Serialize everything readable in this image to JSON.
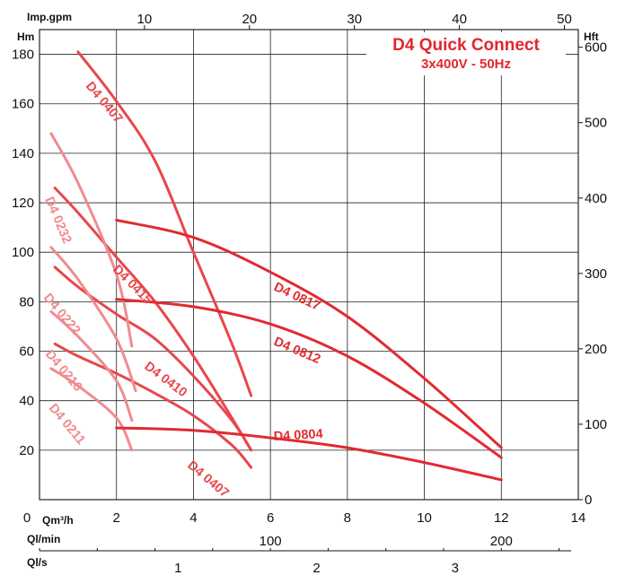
{
  "chart_data": {
    "type": "line",
    "title": "D4 Quick Connect",
    "subtitle": "3x400V - 50Hz",
    "x_axis": {
      "label": "Qm³/h",
      "range": [
        0,
        14
      ],
      "ticks": [
        "0",
        "2",
        "4",
        "6",
        "8",
        "10",
        "12",
        "14"
      ]
    },
    "y_axis": {
      "label": "Hm",
      "range": [
        0,
        190
      ],
      "ticks": [
        "20",
        "40",
        "60",
        "80",
        "100",
        "120",
        "140",
        "160",
        "180"
      ]
    },
    "y_axis_right": {
      "label": "Hft",
      "ticks": [
        "0",
        "100",
        "200",
        "300",
        "400",
        "500",
        "600"
      ]
    },
    "x_axis_top": {
      "label": "Imp.gpm",
      "ticks": [
        "10",
        "20",
        "30",
        "40",
        "50"
      ]
    },
    "x_axis_lmin": {
      "label": "Ql/min",
      "ticks": [
        "100",
        "200"
      ]
    },
    "x_axis_ls": {
      "label": "Ql/s",
      "ticks": [
        "1",
        "2",
        "3"
      ]
    },
    "grid": true,
    "series": [
      {
        "name": "D4 0407",
        "color": "#e8474c",
        "points": [
          [
            1,
            181
          ],
          [
            2,
            161
          ],
          [
            3,
            137
          ],
          [
            4,
            100
          ],
          [
            5,
            63
          ],
          [
            5.5,
            42
          ]
        ]
      },
      {
        "name": "D4 0415",
        "color": "#e8474c",
        "points": [
          [
            0.4,
            126
          ],
          [
            1,
            116
          ],
          [
            2,
            98
          ],
          [
            3,
            80
          ],
          [
            4,
            58
          ],
          [
            5,
            33
          ],
          [
            5.5,
            20
          ]
        ]
      },
      {
        "name": "D4 0410",
        "color": "#e8474c",
        "points": [
          [
            0.4,
            94
          ],
          [
            1,
            86
          ],
          [
            2,
            75
          ],
          [
            3,
            65
          ],
          [
            4,
            50
          ],
          [
            5,
            32
          ],
          [
            5.5,
            20
          ]
        ]
      },
      {
        "name": "D4 0407",
        "color": "#e8474c",
        "points": [
          [
            0.4,
            63
          ],
          [
            1,
            58
          ],
          [
            2,
            51
          ],
          [
            3,
            43
          ],
          [
            4,
            34
          ],
          [
            5,
            22
          ],
          [
            5.5,
            13
          ]
        ]
      },
      {
        "name": "D4 0232",
        "color": "#f08b8f",
        "points": [
          [
            0.3,
            148
          ],
          [
            1,
            128
          ],
          [
            2,
            91
          ],
          [
            2.4,
            62
          ]
        ]
      },
      {
        "name": "D4 0222",
        "color": "#f08b8f",
        "points": [
          [
            0.3,
            102
          ],
          [
            1,
            89
          ],
          [
            2,
            65
          ],
          [
            2.5,
            44
          ]
        ]
      },
      {
        "name": "D4 0216",
        "color": "#f08b8f",
        "points": [
          [
            0.3,
            76
          ],
          [
            1,
            66
          ],
          [
            2,
            48
          ],
          [
            2.4,
            32
          ]
        ]
      },
      {
        "name": "D4 0211",
        "color": "#f08b8f",
        "points": [
          [
            0.3,
            53
          ],
          [
            1,
            46
          ],
          [
            2,
            33
          ],
          [
            2.4,
            20
          ]
        ]
      },
      {
        "name": "D4 0817",
        "color": "#e02b31",
        "points": [
          [
            2,
            113
          ],
          [
            4,
            106
          ],
          [
            6,
            92
          ],
          [
            8,
            74
          ],
          [
            10,
            49
          ],
          [
            12,
            21
          ]
        ]
      },
      {
        "name": "D4 0812",
        "color": "#e02b31",
        "points": [
          [
            2,
            81
          ],
          [
            4,
            78
          ],
          [
            6,
            71
          ],
          [
            8,
            58
          ],
          [
            10,
            39
          ],
          [
            12,
            17
          ]
        ]
      },
      {
        "name": "D4 0804",
        "color": "#e02b31",
        "points": [
          [
            2,
            29
          ],
          [
            4,
            28
          ],
          [
            6,
            25
          ],
          [
            8,
            21
          ],
          [
            10,
            15
          ],
          [
            12,
            8
          ]
        ]
      }
    ]
  }
}
